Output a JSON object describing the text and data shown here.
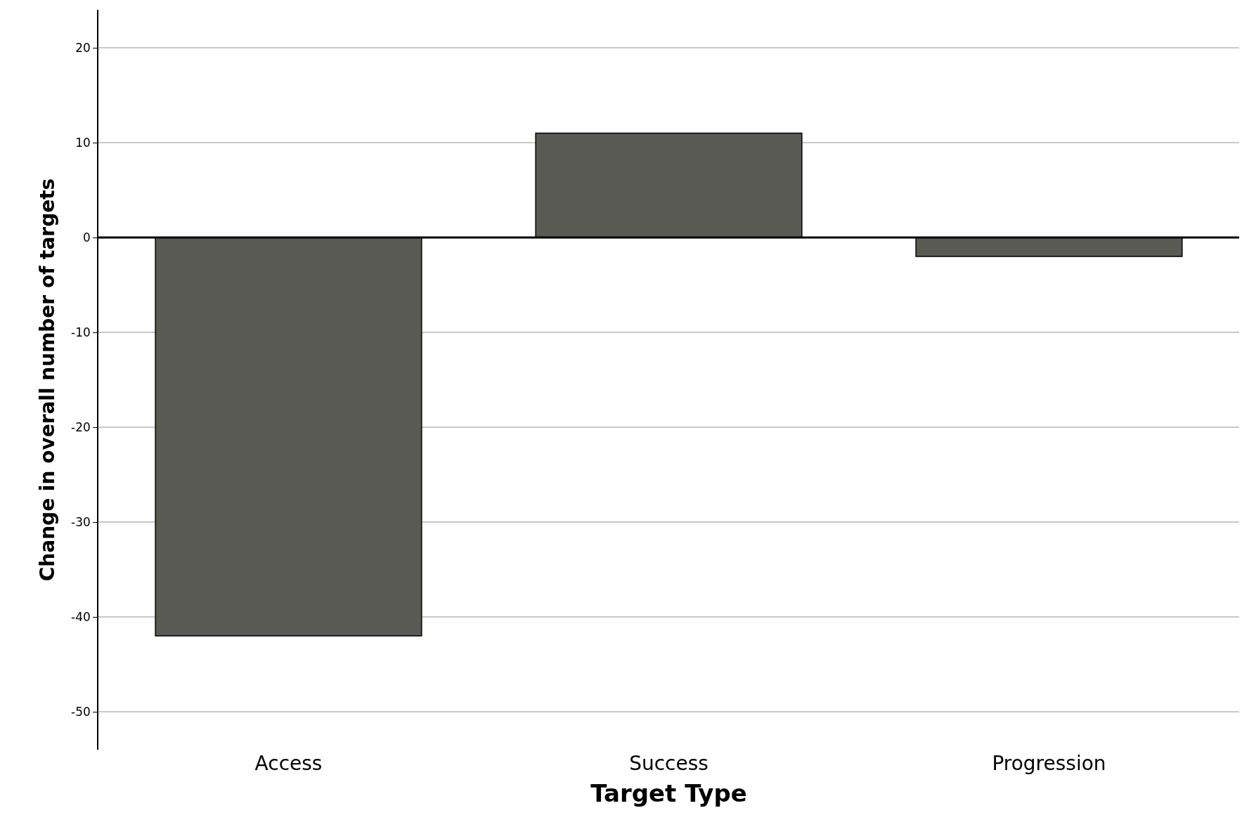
{
  "chart_data": {
    "type": "bar",
    "xlabel": "Target Type",
    "ylabel": "Change in overall number of targets",
    "categories": [
      "Access",
      "Success",
      "Progression"
    ],
    "values": [
      -42,
      11,
      -2
    ],
    "color": "#5a5a54",
    "ylim": [
      -54,
      24
    ],
    "yticks": [
      -50,
      -40,
      -30,
      -20,
      -10,
      0,
      10,
      20
    ],
    "grid": "y",
    "ref_lines": [
      {
        "axis": "y",
        "value": 0,
        "color": "#000000"
      }
    ]
  }
}
